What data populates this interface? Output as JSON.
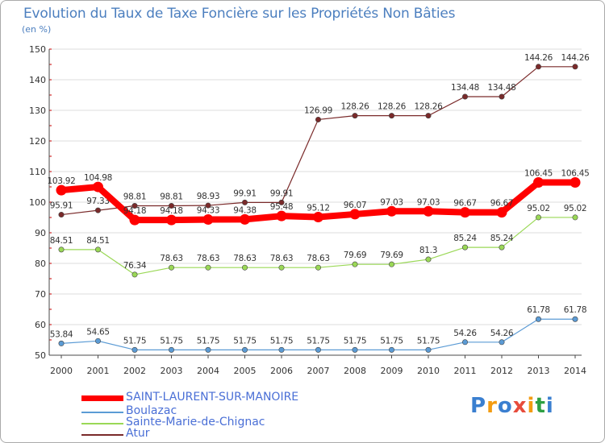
{
  "colors": {
    "saint_laurent": "#ff0000",
    "boulazac": "#5b9bd5",
    "sainte_marie": "#9ad856",
    "atur": "#7a2a2a",
    "title": "#4c7fbf",
    "axis": "#4a4a4a",
    "grid": "#dddddd"
  },
  "header": {
    "title": "Evolution du Taux de Taxe Foncière sur les Propriétés Non Bâties",
    "unit": "(en %)"
  },
  "legend": {
    "items": [
      {
        "label": "SAINT-LAURENT-SUR-MANOIRE",
        "color": "#ff0000"
      },
      {
        "label": "Boulazac",
        "color": "#5b9bd5"
      },
      {
        "label": "Sainte-Marie-de-Chignac",
        "color": "#9ad856"
      },
      {
        "label": "Atur",
        "color": "#7a2a2a"
      }
    ]
  },
  "logo": {
    "text": "Proxiti",
    "letters": [
      {
        "ch": "P",
        "color": "#3a7fd0"
      },
      {
        "ch": "r",
        "color": "#f39c12"
      },
      {
        "ch": "o",
        "color": "#3a7fd0"
      },
      {
        "ch": "x",
        "color": "#e74c3c"
      },
      {
        "ch": "i",
        "color": "#f39c12"
      },
      {
        "ch": "t",
        "color": "#2ea043"
      },
      {
        "ch": "i",
        "color": "#3a7fd0"
      }
    ]
  },
  "chart_data": {
    "type": "line",
    "title": "Evolution du Taux de Taxe Foncière sur les Propriétés Non Bâties",
    "ylabel": "(en %)",
    "xlabel": "",
    "x": [
      "2000",
      "2001",
      "2002",
      "2003",
      "2004",
      "2005",
      "2006",
      "2007",
      "2008",
      "2009",
      "2010",
      "2011",
      "2012",
      "2013",
      "2014"
    ],
    "ylim": [
      50,
      150
    ],
    "yticks": [
      50,
      60,
      70,
      80,
      90,
      100,
      110,
      120,
      130,
      140,
      150
    ],
    "grid": true,
    "legend_position": "bottom-left",
    "series": [
      {
        "name": "Atur",
        "color": "#7a2a2a",
        "values": [
          95.91,
          97.33,
          98.81,
          98.81,
          98.93,
          99.91,
          99.91,
          126.99,
          128.26,
          128.26,
          128.26,
          134.48,
          134.48,
          144.26,
          144.26
        ],
        "labels": [
          "95.91",
          "97.33",
          "98.81",
          "98.81",
          "98.93",
          "99.91",
          "99.91",
          "126.99",
          "128.26",
          "128.26",
          "128.26",
          "134.48",
          "134.48",
          "144.26",
          "144.26"
        ]
      },
      {
        "name": "Sainte-Marie-de-Chignac",
        "color": "#9ad856",
        "values": [
          84.51,
          84.51,
          76.34,
          78.63,
          78.63,
          78.63,
          78.63,
          78.63,
          79.69,
          79.69,
          81.3,
          85.24,
          85.24,
          95.02,
          95.02
        ],
        "labels": [
          "84.51",
          "84.51",
          "76.34",
          "78.63",
          "78.63",
          "78.63",
          "78.63",
          "78.63",
          "79.69",
          "79.69",
          "81.3",
          "85.24",
          "85.24",
          "95.02",
          "95.02"
        ]
      },
      {
        "name": "Boulazac",
        "color": "#5b9bd5",
        "values": [
          53.84,
          54.65,
          51.75,
          51.75,
          51.75,
          51.75,
          51.75,
          51.75,
          51.75,
          51.75,
          51.75,
          54.26,
          54.26,
          61.78,
          61.78
        ],
        "labels": [
          "53.84",
          "54.65",
          "51.75",
          "51.75",
          "51.75",
          "51.75",
          "51.75",
          "51.75",
          "51.75",
          "51.75",
          "51.75",
          "54.26",
          "54.26",
          "61.78",
          "61.78"
        ]
      },
      {
        "name": "SAINT-LAURENT-SUR-MANOIRE",
        "color": "#ff0000",
        "values": [
          103.92,
          104.98,
          94.18,
          94.18,
          94.33,
          94.38,
          95.48,
          95.12,
          96.07,
          97.03,
          97.03,
          96.67,
          96.67,
          106.45,
          106.45
        ],
        "labels": [
          "103.92",
          "104.98",
          "94.18",
          "94.18",
          "94.33",
          "94.38",
          "95.48",
          "95.12",
          "96.07",
          "97.03",
          "97.03",
          "96.67",
          "96.67",
          "106.45",
          "106.45"
        ]
      }
    ]
  }
}
